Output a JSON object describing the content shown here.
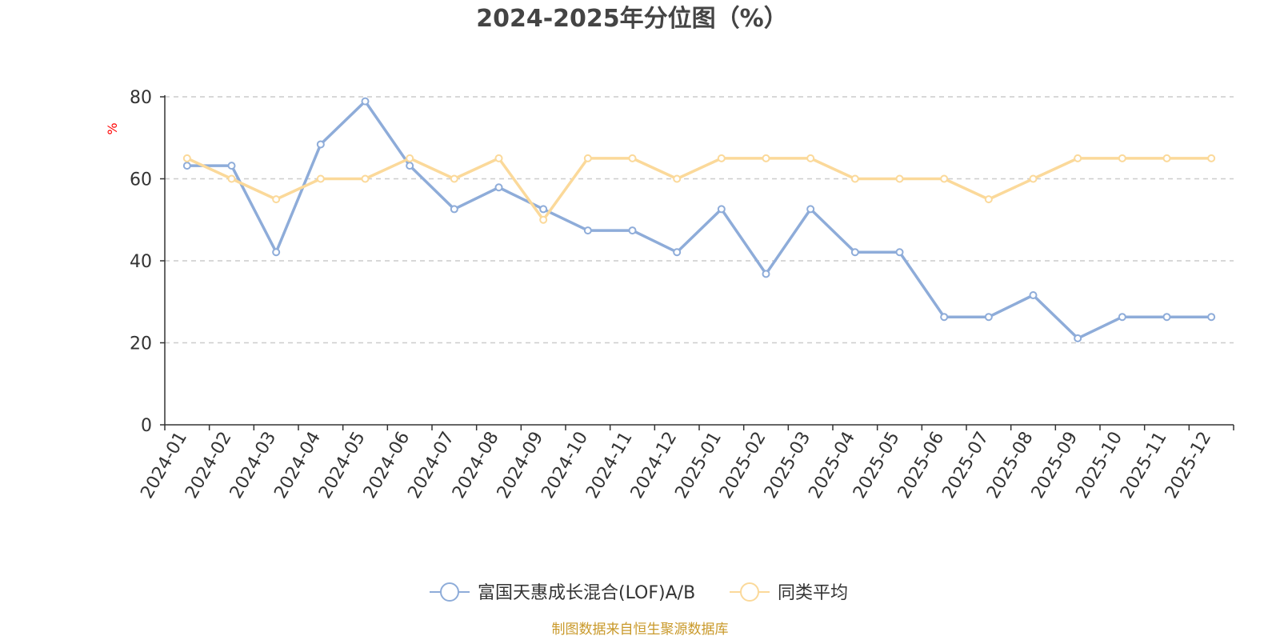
{
  "chart_data": {
    "type": "line",
    "title": "2024-2025年分位图（%）",
    "xlabel": "",
    "ylabel": "%",
    "ylim": [
      0,
      80
    ],
    "yticks": [
      0,
      20,
      40,
      60,
      80
    ],
    "grid": true,
    "legend_position": "bottom-center",
    "categories": [
      "2024-01",
      "2024-02",
      "2024-03",
      "2024-04",
      "2024-05",
      "2024-06",
      "2024-07",
      "2024-08",
      "2024-09",
      "2024-10",
      "2024-11",
      "2024-12",
      "2025-01",
      "2025-02",
      "2025-03",
      "2025-04",
      "2025-05",
      "2025-06",
      "2025-07",
      "2025-08",
      "2025-09",
      "2025-10",
      "2025-11",
      "2025-12"
    ],
    "series": [
      {
        "name": "富国天惠成长混合(LOF)A/B",
        "color": "#8eacd9",
        "values": [
          63.2,
          63.2,
          42.1,
          68.4,
          78.9,
          63.2,
          52.6,
          57.9,
          52.6,
          47.4,
          47.4,
          42.1,
          52.6,
          36.8,
          52.6,
          42.1,
          42.1,
          26.3,
          26.3,
          31.6,
          21.1,
          26.3,
          26.3,
          26.3
        ]
      },
      {
        "name": "同类平均",
        "color": "#fbd99a",
        "values": [
          65,
          60,
          55,
          60,
          60,
          65,
          60,
          65,
          50,
          65,
          65,
          60,
          65,
          65,
          65,
          60,
          60,
          60,
          55,
          60,
          65,
          65,
          65,
          65
        ]
      }
    ],
    "source_note": "制图数据来自恒生聚源数据库",
    "source_color": "#c9992a",
    "ylabel_color": "#ff0000"
  }
}
